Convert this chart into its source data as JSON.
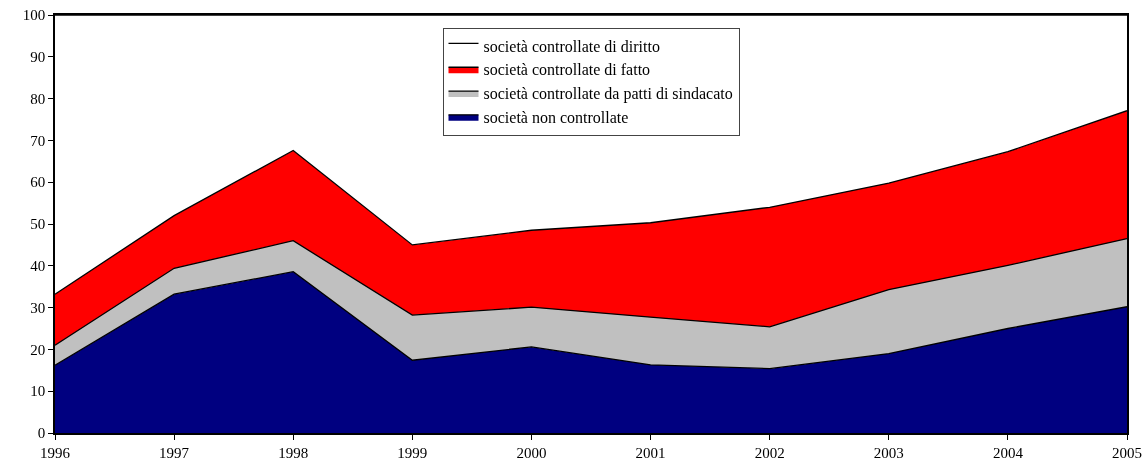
{
  "chart_data": {
    "type": "area",
    "stacked": true,
    "x": [
      1996,
      1997,
      1998,
      1999,
      2000,
      2001,
      2002,
      2003,
      2004,
      2005
    ],
    "series": [
      {
        "name": "società non controllate",
        "color": "#000080",
        "values": [
          16.2,
          33.2,
          38.6,
          17.4,
          20.6,
          16.3,
          15.4,
          19.0,
          25.0,
          30.2
        ]
      },
      {
        "name": "società controllate da patti di sindacato",
        "color": "#c0c0c0",
        "values": [
          4.8,
          6.2,
          7.4,
          10.8,
          9.5,
          11.4,
          10.0,
          15.3,
          15.1,
          16.3
        ]
      },
      {
        "name": "società controllate di fatto",
        "color": "#ff0000",
        "values": [
          12.2,
          12.6,
          21.6,
          16.8,
          18.4,
          22.6,
          28.6,
          25.5,
          27.2,
          30.6
        ]
      },
      {
        "name": "società controllate di diritto",
        "color": "#ffffff",
        "values": [
          66.8,
          48,
          32.4,
          55,
          51.5,
          49.7,
          46,
          40.2,
          32.7,
          22.9
        ]
      }
    ],
    "xlim": [
      1996,
      2005
    ],
    "xticks": [
      1996,
      1997,
      1998,
      1999,
      2000,
      2001,
      2002,
      2003,
      2004,
      2005
    ],
    "ylim": [
      0,
      100
    ],
    "yticks": [
      0,
      10,
      20,
      30,
      40,
      50,
      60,
      70,
      80,
      90,
      100
    ],
    "grid": false,
    "legend": "top",
    "line_style": "solid"
  }
}
